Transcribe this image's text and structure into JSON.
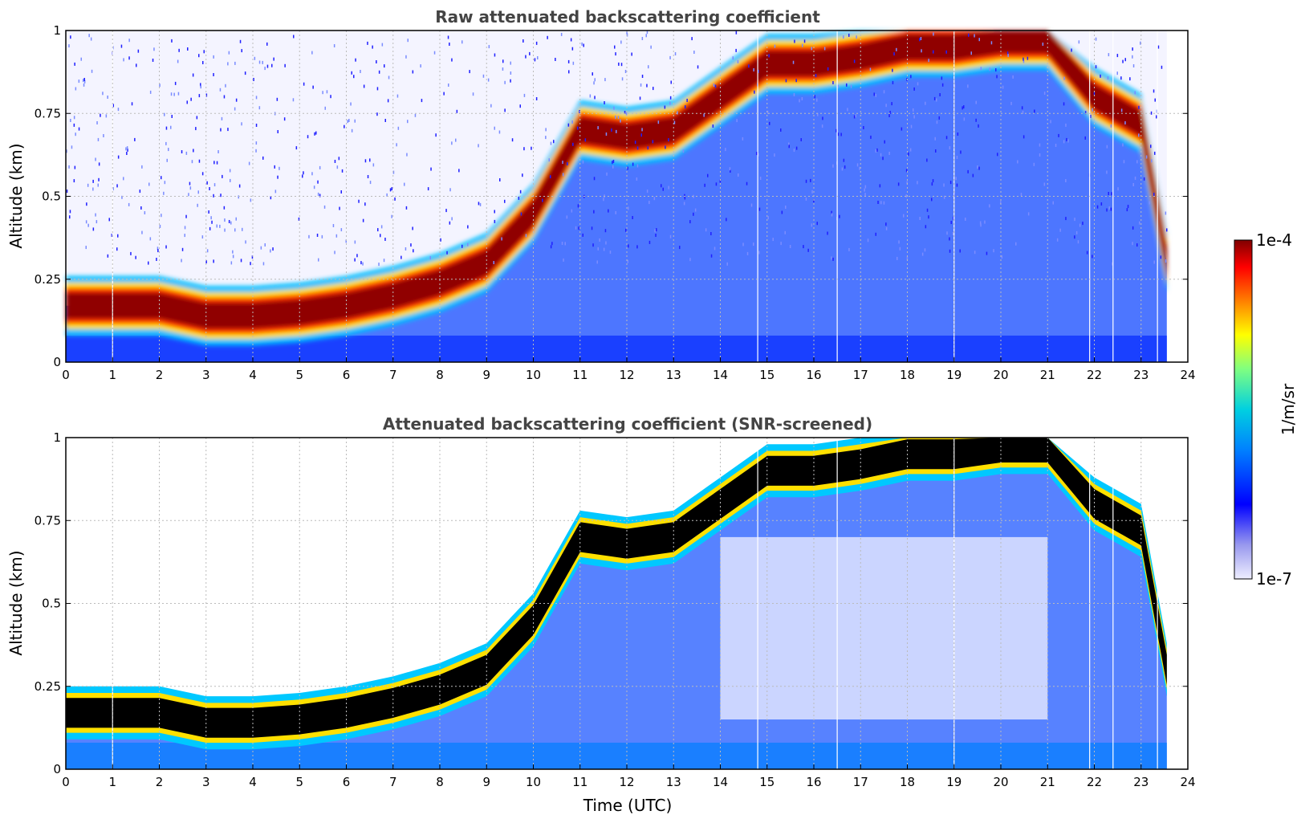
{
  "chart_data": [
    {
      "type": "heatmap",
      "title": "Raw attenuated backscattering coefficient",
      "xlabel": "",
      "ylabel": "Altitude (km)",
      "xlim": [
        0,
        24
      ],
      "ylim": [
        0,
        1
      ],
      "xticks": [
        "0",
        "1",
        "2",
        "3",
        "4",
        "5",
        "6",
        "7",
        "8",
        "9",
        "10",
        "11",
        "12",
        "13",
        "14",
        "15",
        "16",
        "17",
        "18",
        "19",
        "20",
        "21",
        "22",
        "23",
        "24"
      ],
      "yticks": [
        "0",
        "0.25",
        "0.5",
        "0.75",
        "1"
      ],
      "grid": true,
      "data_end_hour": 23.55,
      "layer_peak_km": [
        {
          "x": 0,
          "y": 0.17
        },
        {
          "x": 1,
          "y": 0.17
        },
        {
          "x": 2,
          "y": 0.17
        },
        {
          "x": 3,
          "y": 0.14
        },
        {
          "x": 4,
          "y": 0.14
        },
        {
          "x": 5,
          "y": 0.15
        },
        {
          "x": 6,
          "y": 0.17
        },
        {
          "x": 7,
          "y": 0.2
        },
        {
          "x": 8,
          "y": 0.24
        },
        {
          "x": 9,
          "y": 0.3
        },
        {
          "x": 10,
          "y": 0.45
        },
        {
          "x": 11,
          "y": 0.7
        },
        {
          "x": 12,
          "y": 0.68
        },
        {
          "x": 13,
          "y": 0.7
        },
        {
          "x": 14,
          "y": 0.8
        },
        {
          "x": 15,
          "y": 0.9
        },
        {
          "x": 16,
          "y": 0.9
        },
        {
          "x": 17,
          "y": 0.92
        },
        {
          "x": 18,
          "y": 0.95
        },
        {
          "x": 19,
          "y": 0.95
        },
        {
          "x": 20,
          "y": 0.97
        },
        {
          "x": 21,
          "y": 0.97
        },
        {
          "x": 22,
          "y": 0.8
        },
        {
          "x": 23,
          "y": 0.72
        },
        {
          "x": 23.55,
          "y": 0.3
        }
      ]
    },
    {
      "type": "heatmap",
      "title": "Attenuated backscattering coefficient (SNR-screened)",
      "xlabel": "Time (UTC)",
      "ylabel": "Altitude (km)",
      "xlim": [
        0,
        24
      ],
      "ylim": [
        0,
        1
      ],
      "xticks": [
        "0",
        "1",
        "2",
        "3",
        "4",
        "5",
        "6",
        "7",
        "8",
        "9",
        "10",
        "11",
        "12",
        "13",
        "14",
        "15",
        "16",
        "17",
        "18",
        "19",
        "20",
        "21",
        "22",
        "23",
        "24"
      ],
      "yticks": [
        "0",
        "0.25",
        "0.5",
        "0.75",
        "1"
      ],
      "grid": true,
      "data_end_hour": 23.55,
      "saturated_color": "#000000"
    }
  ],
  "colorbar": {
    "label": "1/m/sr",
    "max_label": "1e-4",
    "min_label": "1e-7",
    "colors": [
      "#eeeeff",
      "#9999ee",
      "#0000ff",
      "#0080ff",
      "#00d0e0",
      "#80ff80",
      "#ffff00",
      "#ff8000",
      "#ff0000",
      "#800000"
    ]
  }
}
